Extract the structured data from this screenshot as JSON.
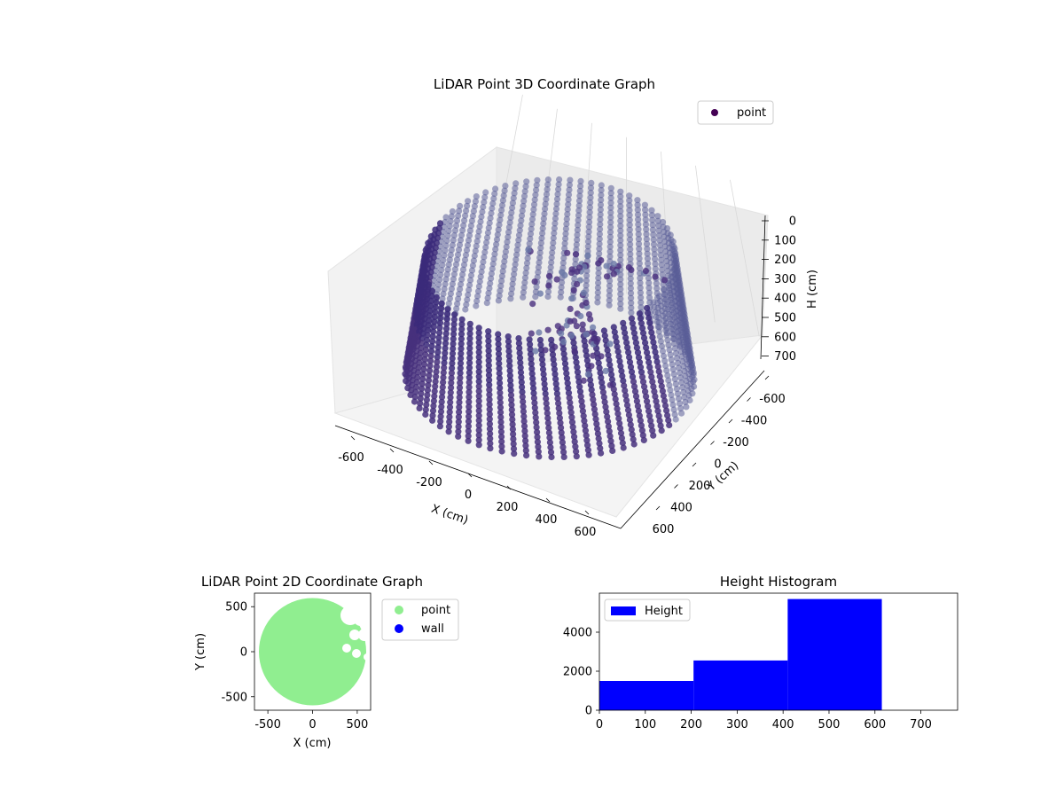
{
  "chart_data": [
    {
      "type": "scatter",
      "title": "LiDAR Point 3D Coordinate Graph",
      "xlabel": "X (cm)",
      "ylabel": "Y (cm)",
      "zlabel": "H (cm)",
      "xlim": [
        -650,
        650
      ],
      "ylim": [
        -650,
        650
      ],
      "zlim": [
        0,
        780
      ],
      "z_inverted": true,
      "xticks": [
        -600,
        -400,
        -200,
        0,
        200,
        400,
        600
      ],
      "yticks": [
        -600,
        -400,
        -200,
        0,
        200,
        400,
        600
      ],
      "zticks": [
        0,
        100,
        200,
        300,
        400,
        500,
        600,
        700
      ],
      "series": [
        {
          "name": "point",
          "color": "#440154"
        }
      ],
      "wall_radius": 600,
      "wall_height_range": [
        0,
        610
      ],
      "legend": "top-right",
      "grid": true
    },
    {
      "type": "scatter",
      "title": "LiDAR Point 2D Coordinate Graph",
      "xlabel": "X (cm)",
      "ylabel": "Y (cm)",
      "xlim": [
        -650,
        650
      ],
      "ylim": [
        -650,
        650
      ],
      "xticks": [
        -500,
        0,
        500
      ],
      "yticks": [
        -500,
        0,
        500
      ],
      "series": [
        {
          "name": "point",
          "color": "#90ee90"
        },
        {
          "name": "wall",
          "color": "#0000ff"
        }
      ],
      "disc_radius": 600,
      "legend": "outside-right",
      "grid": false
    },
    {
      "type": "bar",
      "title": "Height Histogram",
      "bin_edges": [
        0,
        205,
        410,
        615
      ],
      "values": [
        1500,
        2550,
        5700
      ],
      "xlim": [
        0,
        780
      ],
      "ylim": [
        0,
        6000
      ],
      "xticks": [
        0,
        100,
        200,
        300,
        400,
        500,
        600,
        700
      ],
      "yticks": [
        0,
        2000,
        4000
      ],
      "series": [
        {
          "name": "Height",
          "color": "#0000ff"
        }
      ],
      "legend": "top-left",
      "grid": false
    }
  ]
}
